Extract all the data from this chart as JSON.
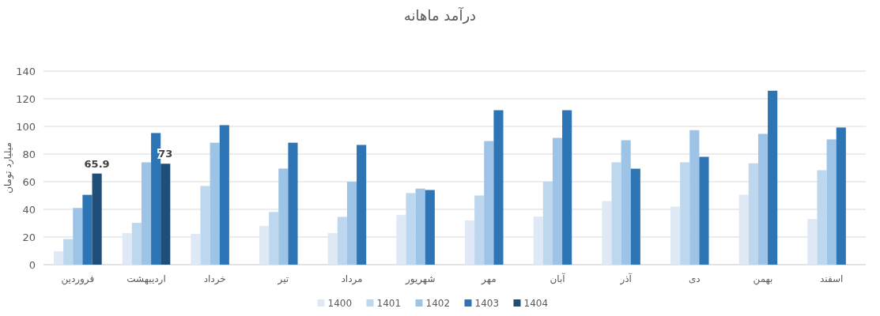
{
  "chart_data": {
    "type": "bar",
    "title": "درآمد ماهانه",
    "ylabel": "میلیارد تومان",
    "categories": [
      "فروردین",
      "اردیبهشت",
      "خرداد",
      "تیر",
      "مرداد",
      "شهریور",
      "مهر",
      "آبان",
      "آذر",
      "دی",
      "بهمن",
      "اسفند"
    ],
    "series": [
      {
        "name": "1400",
        "color": "#dee9f5",
        "values": [
          9.6,
          22.8,
          22.2,
          27.9,
          22.8,
          35.9,
          32,
          34.8,
          46,
          42,
          50.6,
          33
        ]
      },
      {
        "name": "1401",
        "color": "#bdd7ee",
        "values": [
          18.5,
          30.2,
          56.9,
          38.1,
          34.6,
          51.8,
          50,
          60,
          74,
          74,
          73.3,
          68.3
        ]
      },
      {
        "name": "1402",
        "color": "#9dc3e6",
        "values": [
          41,
          74,
          88.2,
          69.5,
          59.9,
          55,
          89.4,
          91.7,
          90,
          97.3,
          94.6,
          90.6
        ]
      },
      {
        "name": "1403",
        "color": "#2e75b6",
        "values": [
          50.5,
          95.2,
          100.9,
          88.2,
          86.6,
          54,
          111.7,
          111.7,
          69.4,
          78,
          125.8,
          99.2
        ]
      },
      {
        "name": "1404",
        "color": "#1f4e79",
        "values": [
          65.9,
          73,
          null,
          null,
          null,
          null,
          null,
          null,
          null,
          null,
          null,
          null
        ],
        "value_labels": [
          "65.9",
          "73",
          null,
          null,
          null,
          null,
          null,
          null,
          null,
          null,
          null,
          null
        ]
      }
    ],
    "ylim": [
      0,
      140
    ],
    "yticks": [
      0,
      20,
      40,
      60,
      80,
      100,
      120,
      140
    ],
    "grid": "y",
    "legend": "bottom"
  }
}
